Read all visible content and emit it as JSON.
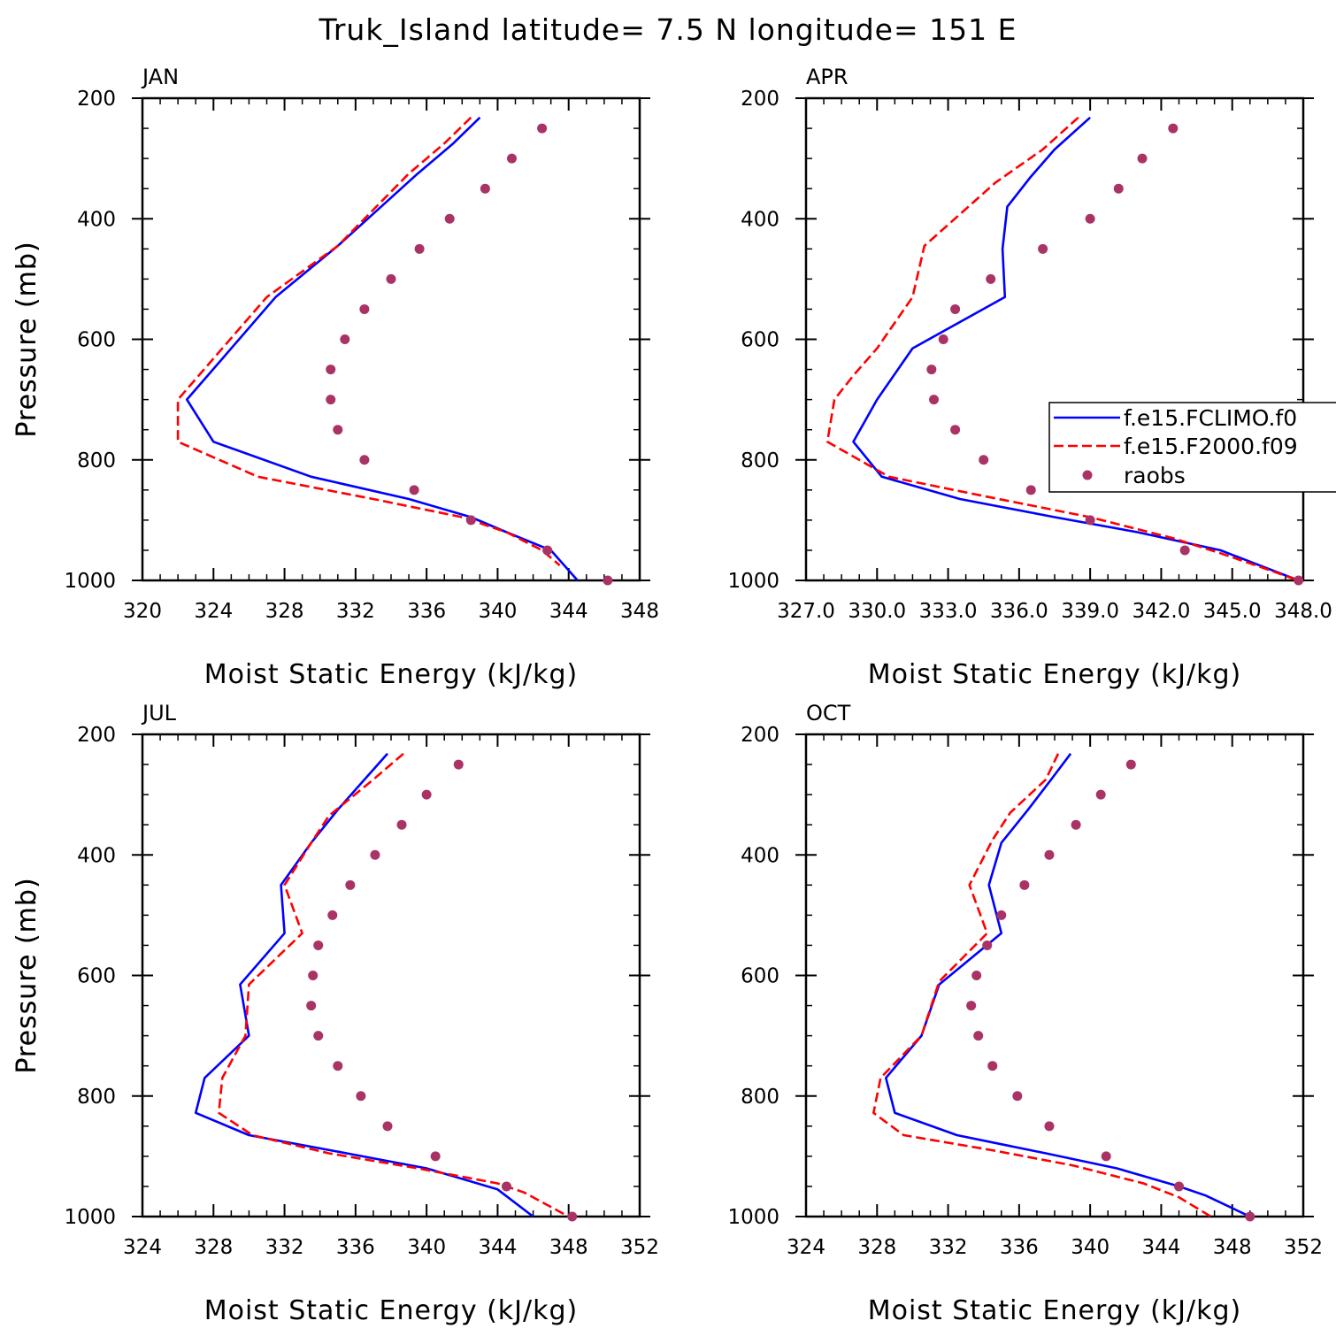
{
  "figure_title": "Truk_Island  latitude= 7.5 N longitude= 151 E",
  "colors": {
    "model_a": "#0000ff",
    "model_b": "#ff0000",
    "raobs": "#aa3366",
    "axes": "#000000"
  },
  "legend": {
    "entries": [
      "f.e15.FCLIMO.f0",
      "f.e15.F2000.f09",
      "raobs"
    ]
  },
  "chart_data": [
    {
      "type": "line",
      "panel": "JAN",
      "title": "JAN",
      "xlabel": "Moist Static Energy (kJ/kg)",
      "ylabel": "Pressure (mb)",
      "xlim": [
        320,
        348
      ],
      "ylim": [
        200,
        1000
      ],
      "xticks": [
        320,
        324,
        328,
        332,
        336,
        340,
        344,
        348
      ],
      "xtick_labels": [
        "320",
        "324",
        "328",
        "332",
        "336",
        "340",
        "344",
        "348"
      ],
      "yticks": [
        200,
        400,
        600,
        800,
        1000
      ],
      "yaxis_inverted": true,
      "series": [
        {
          "name": "f.e15.FCLIMO.f0",
          "style": "solid",
          "points": [
            [
              339.0,
              232
            ],
            [
              337.5,
              275
            ],
            [
              335.5,
              325
            ],
            [
              331.0,
              445
            ],
            [
              327.5,
              530
            ],
            [
              325.0,
              615
            ],
            [
              322.5,
              700
            ],
            [
              324.0,
              770
            ],
            [
              329.5,
              828
            ],
            [
              335.0,
              865
            ],
            [
              338.5,
              895
            ],
            [
              340.5,
              920
            ],
            [
              343.0,
              950
            ],
            [
              344.5,
              1000
            ]
          ]
        },
        {
          "name": "f.e15.F2000.f09",
          "style": "dashed",
          "points": [
            [
              338.5,
              232
            ],
            [
              337.0,
              275
            ],
            [
              335.0,
              325
            ],
            [
              331.0,
              445
            ],
            [
              327.0,
              530
            ],
            [
              324.5,
              615
            ],
            [
              322.0,
              700
            ],
            [
              322.0,
              770
            ],
            [
              326.5,
              828
            ],
            [
              333.0,
              865
            ],
            [
              338.0,
              895
            ],
            [
              340.5,
              920
            ],
            [
              342.5,
              950
            ],
            [
              343.5,
              975
            ]
          ]
        },
        {
          "name": "raobs",
          "style": "dots",
          "points": [
            [
              342.5,
              250
            ],
            [
              340.8,
              300
            ],
            [
              339.3,
              350
            ],
            [
              337.3,
              400
            ],
            [
              335.6,
              450
            ],
            [
              334.0,
              500
            ],
            [
              332.5,
              550
            ],
            [
              331.4,
              600
            ],
            [
              330.6,
              650
            ],
            [
              330.6,
              700
            ],
            [
              331.0,
              750
            ],
            [
              332.5,
              800
            ],
            [
              335.3,
              850
            ],
            [
              338.5,
              900
            ],
            [
              342.8,
              950
            ],
            [
              346.2,
              1000
            ]
          ]
        }
      ]
    },
    {
      "type": "line",
      "panel": "APR",
      "title": "APR",
      "xlabel": "Moist Static Energy (kJ/kg)",
      "ylabel": "Pressure (mb)",
      "xlim": [
        327,
        348
      ],
      "ylim": [
        200,
        1000
      ],
      "xticks": [
        327,
        330,
        333,
        336,
        339,
        342,
        345,
        348
      ],
      "xtick_labels": [
        "327.0",
        "330.0",
        "333.0",
        "336.0",
        "339.0",
        "342.0",
        "345.0",
        "348.0"
      ],
      "yticks": [
        200,
        400,
        600,
        800,
        1000
      ],
      "yaxis_inverted": true,
      "series": [
        {
          "name": "f.e15.FCLIMO.f0",
          "style": "solid",
          "points": [
            [
              339.0,
              232
            ],
            [
              337.5,
              285
            ],
            [
              336.5,
              330
            ],
            [
              335.5,
              380
            ],
            [
              335.3,
              450
            ],
            [
              335.4,
              530
            ],
            [
              331.5,
              615
            ],
            [
              330.0,
              700
            ],
            [
              329.0,
              770
            ],
            [
              330.2,
              828
            ],
            [
              333.5,
              865
            ],
            [
              337.5,
              895
            ],
            [
              341.0,
              920
            ],
            [
              344.5,
              950
            ],
            [
              345.5,
              965
            ],
            [
              347.8,
              1000
            ]
          ]
        },
        {
          "name": "f.e15.F2000.f09",
          "style": "dashed",
          "points": [
            [
              338.5,
              232
            ],
            [
              337.0,
              285
            ],
            [
              335.0,
              340
            ],
            [
              332.0,
              445
            ],
            [
              331.5,
              530
            ],
            [
              330.0,
              615
            ],
            [
              329.0,
              660
            ],
            [
              328.2,
              700
            ],
            [
              327.9,
              770
            ],
            [
              330.5,
              828
            ],
            [
              334.5,
              860
            ],
            [
              339.0,
              895
            ],
            [
              342.5,
              930
            ],
            [
              344.5,
              955
            ],
            [
              346.0,
              975
            ],
            [
              347.8,
              1000
            ]
          ]
        },
        {
          "name": "raobs",
          "style": "dots",
          "points": [
            [
              342.5,
              250
            ],
            [
              341.2,
              300
            ],
            [
              340.2,
              350
            ],
            [
              339.0,
              400
            ],
            [
              337.0,
              450
            ],
            [
              334.8,
              500
            ],
            [
              333.3,
              550
            ],
            [
              332.8,
              600
            ],
            [
              332.3,
              650
            ],
            [
              332.4,
              700
            ],
            [
              333.3,
              750
            ],
            [
              334.5,
              800
            ],
            [
              336.5,
              850
            ],
            [
              339.0,
              900
            ],
            [
              343.0,
              950
            ],
            [
              347.8,
              1000
            ]
          ]
        }
      ]
    },
    {
      "type": "line",
      "panel": "JUL",
      "title": "JUL",
      "xlabel": "Moist Static Energy (kJ/kg)",
      "ylabel": "Pressure (mb)",
      "xlim": [
        324,
        352
      ],
      "ylim": [
        200,
        1000
      ],
      "xticks": [
        324,
        328,
        332,
        336,
        340,
        344,
        348,
        352
      ],
      "xtick_labels": [
        "324",
        "328",
        "332",
        "336",
        "340",
        "344",
        "348",
        "352"
      ],
      "yticks": [
        200,
        400,
        600,
        800,
        1000
      ],
      "yaxis_inverted": true,
      "series": [
        {
          "name": "f.e15.FCLIMO.f0",
          "style": "solid",
          "points": [
            [
              337.8,
              232
            ],
            [
              336.5,
              275
            ],
            [
              335.0,
              325
            ],
            [
              333.5,
              380
            ],
            [
              331.8,
              450
            ],
            [
              332.0,
              530
            ],
            [
              329.5,
              615
            ],
            [
              330.0,
              700
            ],
            [
              327.5,
              770
            ],
            [
              327.0,
              828
            ],
            [
              330.0,
              865
            ],
            [
              335.5,
              895
            ],
            [
              340.0,
              920
            ],
            [
              344.0,
              955
            ],
            [
              346.0,
              1000
            ]
          ]
        },
        {
          "name": "f.e15.F2000.f09",
          "style": "dashed",
          "points": [
            [
              338.7,
              232
            ],
            [
              337.0,
              275
            ],
            [
              334.5,
              335
            ],
            [
              333.5,
              380
            ],
            [
              332.0,
              450
            ],
            [
              333.0,
              530
            ],
            [
              330.0,
              615
            ],
            [
              329.8,
              700
            ],
            [
              328.5,
              770
            ],
            [
              328.3,
              828
            ],
            [
              330.2,
              865
            ],
            [
              334.5,
              895
            ],
            [
              339.5,
              920
            ],
            [
              344.0,
              945
            ],
            [
              345.5,
              960
            ],
            [
              348.0,
              1000
            ]
          ]
        },
        {
          "name": "raobs",
          "style": "dots",
          "points": [
            [
              341.8,
              250
            ],
            [
              340.0,
              300
            ],
            [
              338.6,
              350
            ],
            [
              337.1,
              400
            ],
            [
              335.7,
              450
            ],
            [
              334.7,
              500
            ],
            [
              333.9,
              550
            ],
            [
              333.6,
              600
            ],
            [
              333.5,
              650
            ],
            [
              333.9,
              700
            ],
            [
              335.0,
              750
            ],
            [
              336.3,
              800
            ],
            [
              337.8,
              850
            ],
            [
              340.5,
              900
            ],
            [
              344.5,
              950
            ],
            [
              348.2,
              1000
            ]
          ]
        }
      ]
    },
    {
      "type": "line",
      "panel": "OCT",
      "title": "OCT",
      "xlabel": "Moist Static Energy (kJ/kg)",
      "ylabel": "Pressure (mb)",
      "xlim": [
        324,
        352
      ],
      "ylim": [
        200,
        1000
      ],
      "xticks": [
        324,
        328,
        332,
        336,
        340,
        344,
        348,
        352
      ],
      "xtick_labels": [
        "324",
        "328",
        "332",
        "336",
        "340",
        "344",
        "348",
        "352"
      ],
      "yticks": [
        200,
        400,
        600,
        800,
        1000
      ],
      "yaxis_inverted": true,
      "series": [
        {
          "name": "f.e15.FCLIMO.f0",
          "style": "solid",
          "points": [
            [
              338.9,
              232
            ],
            [
              337.8,
              275
            ],
            [
              336.5,
              325
            ],
            [
              335.0,
              380
            ],
            [
              334.3,
              450
            ],
            [
              335.0,
              530
            ],
            [
              331.5,
              615
            ],
            [
              330.5,
              700
            ],
            [
              328.5,
              770
            ],
            [
              329.0,
              828
            ],
            [
              332.5,
              865
            ],
            [
              337.5,
              895
            ],
            [
              341.5,
              920
            ],
            [
              345.0,
              950
            ],
            [
              346.5,
              965
            ],
            [
              349.0,
              1000
            ]
          ]
        },
        {
          "name": "f.e15.F2000.f09",
          "style": "dashed",
          "points": [
            [
              338.2,
              232
            ],
            [
              337.5,
              275
            ],
            [
              335.5,
              330
            ],
            [
              334.5,
              375
            ],
            [
              333.2,
              450
            ],
            [
              334.2,
              530
            ],
            [
              331.5,
              610
            ],
            [
              330.5,
              700
            ],
            [
              328.2,
              770
            ],
            [
              327.8,
              828
            ],
            [
              329.5,
              865
            ],
            [
              334.5,
              890
            ],
            [
              339.0,
              915
            ],
            [
              343.0,
              945
            ],
            [
              345.0,
              968
            ],
            [
              346.8,
              1000
            ]
          ]
        },
        {
          "name": "raobs",
          "style": "dots",
          "points": [
            [
              342.3,
              250
            ],
            [
              340.6,
              300
            ],
            [
              339.2,
              350
            ],
            [
              337.7,
              400
            ],
            [
              336.3,
              450
            ],
            [
              335.0,
              500
            ],
            [
              334.2,
              550
            ],
            [
              333.6,
              600
            ],
            [
              333.3,
              650
            ],
            [
              333.7,
              700
            ],
            [
              334.5,
              750
            ],
            [
              335.9,
              800
            ],
            [
              337.7,
              850
            ],
            [
              340.9,
              900
            ],
            [
              345.0,
              950
            ],
            [
              349.0,
              1000
            ]
          ]
        }
      ]
    }
  ]
}
